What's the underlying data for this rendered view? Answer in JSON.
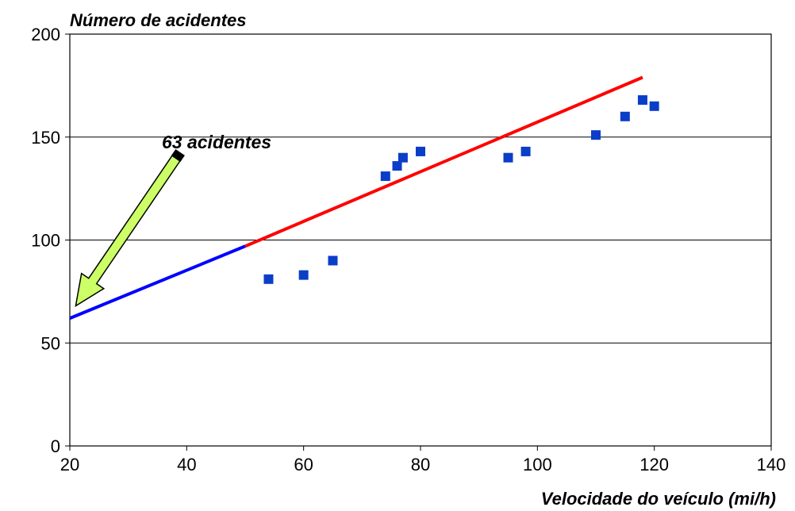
{
  "chart_data": {
    "type": "scatter",
    "title": "",
    "ylabel": "Número de acidentes",
    "xlabel": "Velocidade do veículo (mi/h)",
    "xlim": [
      20,
      140
    ],
    "ylim": [
      0,
      200
    ],
    "x_ticks": [
      "20",
      "40",
      "60",
      "80",
      "100",
      "120",
      "140"
    ],
    "y_ticks": [
      "0",
      "50",
      "100",
      "150",
      "200"
    ],
    "grid": "horizontal",
    "legend": "none",
    "series": [
      {
        "kind": "points",
        "marker": "square",
        "color": "#0a3ec8",
        "x": [
          54,
          60,
          65,
          74,
          76,
          77,
          80,
          95,
          98,
          110,
          115,
          118,
          120
        ],
        "y": [
          81,
          83,
          90,
          131,
          136,
          140,
          143,
          140,
          143,
          151,
          160,
          168,
          165
        ]
      },
      {
        "kind": "line",
        "color": "#ff0000",
        "x": [
          50,
          118
        ],
        "y": [
          97,
          179
        ]
      },
      {
        "kind": "line",
        "color": "#0000ff",
        "x": [
          20,
          50
        ],
        "y": [
          62,
          97
        ]
      }
    ],
    "annotation": {
      "text": "63 acidentes",
      "arrow_color": "#ccff66",
      "from": [
        38.5,
        141
      ],
      "to": [
        21,
        68
      ]
    }
  }
}
